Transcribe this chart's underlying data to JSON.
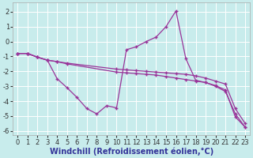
{
  "bg_color": "#c8ecec",
  "grid_color": "#ffffff",
  "line_color": "#993399",
  "xlabel": "Windchill (Refroidissement éolien,°C)",
  "xlim": [
    -0.5,
    23.5
  ],
  "ylim": [
    -6.3,
    2.6
  ],
  "xticks": [
    0,
    1,
    2,
    3,
    4,
    5,
    6,
    7,
    8,
    9,
    10,
    11,
    12,
    13,
    14,
    15,
    16,
    17,
    18,
    19,
    20,
    21,
    22,
    23
  ],
  "yticks": [
    -6,
    -5,
    -4,
    -3,
    -2,
    -1,
    0,
    1,
    2
  ],
  "line1_x": [
    0,
    1,
    2,
    3,
    4,
    5,
    6,
    7,
    8,
    9,
    10,
    11,
    12,
    13,
    14,
    15,
    16,
    17,
    18,
    19,
    20,
    21,
    22,
    23
  ],
  "line1_y": [
    -0.8,
    -0.8,
    -1.05,
    -1.25,
    -2.5,
    -3.1,
    -3.75,
    -4.5,
    -4.85,
    -4.3,
    -4.45,
    -0.55,
    -0.35,
    0.0,
    0.3,
    1.0,
    2.05,
    -1.15,
    -2.6,
    -2.75,
    -3.0,
    -3.35,
    -4.85,
    -5.75
  ],
  "line2_x": [
    0,
    1,
    2,
    3,
    4,
    5,
    10,
    11,
    12,
    13,
    14,
    15,
    16,
    17,
    18,
    19,
    20,
    21,
    22,
    23
  ],
  "line2_y": [
    -0.8,
    -0.8,
    -1.05,
    -1.25,
    -1.35,
    -1.45,
    -1.85,
    -1.9,
    -1.95,
    -2.0,
    -2.05,
    -2.1,
    -2.15,
    -2.2,
    -2.3,
    -2.45,
    -2.65,
    -2.85,
    -4.5,
    -5.5
  ],
  "line3_x": [
    0,
    1,
    2,
    3,
    4,
    5,
    10,
    11,
    12,
    13,
    14,
    15,
    16,
    17,
    18,
    19,
    20,
    21,
    22,
    23
  ],
  "line3_y": [
    -0.8,
    -0.8,
    -1.05,
    -1.25,
    -1.35,
    -1.5,
    -2.05,
    -2.1,
    -2.15,
    -2.2,
    -2.25,
    -2.35,
    -2.45,
    -2.55,
    -2.65,
    -2.75,
    -2.95,
    -3.25,
    -5.05,
    -5.75
  ],
  "xlabel_fontsize": 7,
  "tick_fontsize": 6
}
